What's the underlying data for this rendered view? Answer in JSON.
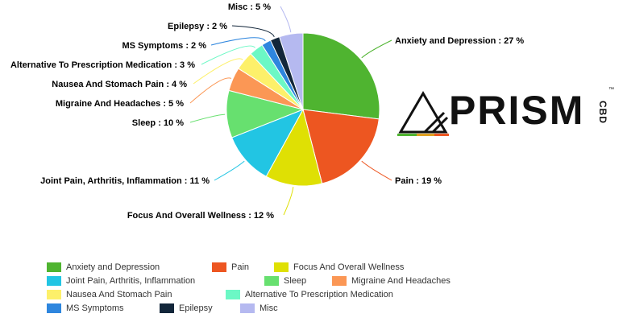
{
  "chart_data": {
    "type": "pie",
    "series": [
      {
        "name": "Anxiety and Depression",
        "value": 27,
        "color": "#4fb430",
        "label": "Anxiety and Depression : 27 %"
      },
      {
        "name": "Pain",
        "value": 19,
        "color": "#ed5621",
        "label": "Pain : 19 %"
      },
      {
        "name": "Focus And Overall Wellness",
        "value": 12,
        "color": "#dfe004",
        "label": "Focus And Overall Wellness : 12 %"
      },
      {
        "name": "Joint Pain, Arthritis, Inflammation",
        "value": 11,
        "color": "#22c5e3",
        "label": "Joint Pain, Arthritis, Inflammation : 11 %"
      },
      {
        "name": "Sleep",
        "value": 10,
        "color": "#67e06f",
        "label": "Sleep : 10 %"
      },
      {
        "name": "Migraine And Headaches",
        "value": 5,
        "color": "#fb9755",
        "label": "Migraine And Headaches : 5 %"
      },
      {
        "name": "Nausea And Stomach Pain",
        "value": 4,
        "color": "#fdf06a",
        "label": "Nausea And Stomach Pain : 4 %"
      },
      {
        "name": "Alternative To Prescription Medication",
        "value": 3,
        "color": "#6cf8c5",
        "label": "Alternative To Prescription Medication : 3 %"
      },
      {
        "name": "MS Symptoms",
        "value": 2,
        "color": "#2e86de",
        "label": "MS Symptoms : 2 %"
      },
      {
        "name": "Epilepsy",
        "value": 2,
        "color": "#12263a",
        "label": "Epilepsy : 2 %"
      },
      {
        "name": "Misc",
        "value": 5,
        "color": "#b5b9f0",
        "label": "Misc : 5 %"
      }
    ],
    "legend_placement": "bottom"
  },
  "logo": {
    "text": "PRISM",
    "sub": "CBD",
    "tm": "™"
  }
}
